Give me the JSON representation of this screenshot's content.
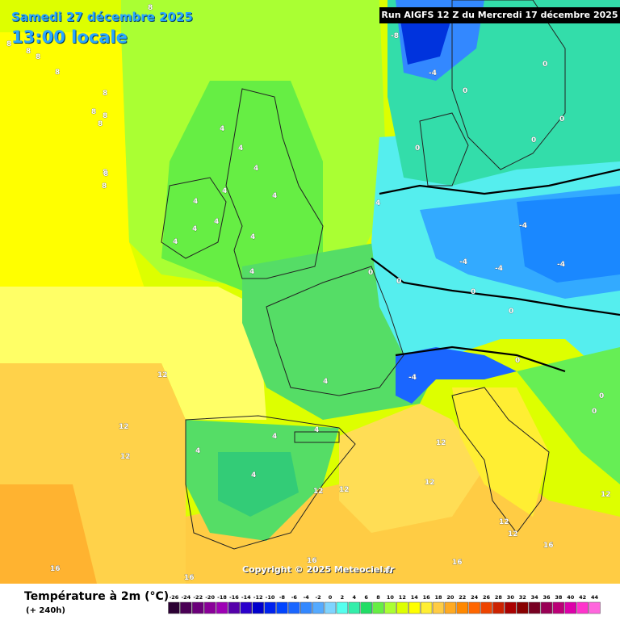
{
  "header": {
    "date": "Samedi 27 décembre 2025",
    "time": "13:00 locale",
    "run": "Run AIGFS 12 Z du Mercredi 17 décembre 2025"
  },
  "copyright": "Copyright © 2025 Meteociel.fr",
  "legend": {
    "title": "Température à 2m (°C)",
    "lead": "(+ 240h)",
    "ticks": [
      "-26",
      "-24",
      "-22",
      "-20",
      "-18",
      "-16",
      "-14",
      "-12",
      "-10",
      "-8",
      "-6",
      "-4",
      "-2",
      "0",
      "2",
      "4",
      "6",
      "8",
      "10",
      "12",
      "14",
      "16",
      "18",
      "20",
      "22",
      "24",
      "26",
      "28",
      "30",
      "32",
      "34",
      "36",
      "38",
      "40",
      "42",
      "44"
    ],
    "colors": [
      "#2b0033",
      "#4a0055",
      "#6b007a",
      "#8a0099",
      "#9e00b5",
      "#5500aa",
      "#2a00cc",
      "#0000cc",
      "#0022ee",
      "#0044ff",
      "#1a66ff",
      "#3388ff",
      "#55aaff",
      "#7fd4ff",
      "#55ffee",
      "#33eeaa",
      "#22dd66",
      "#66ee44",
      "#aaff33",
      "#ddff00",
      "#ffff00",
      "#ffee33",
      "#ffcc44",
      "#ffaa22",
      "#ff8800",
      "#ff6600",
      "#ee4400",
      "#cc2200",
      "#aa0000",
      "#880000",
      "#770022",
      "#990055",
      "#bb0077",
      "#dd00aa",
      "#ff33cc",
      "#ff66dd"
    ]
  },
  "labels": [
    "8",
    "8",
    "8",
    "8",
    "8",
    "8",
    "8",
    "8",
    "8",
    "8",
    "8",
    "8",
    "-8",
    "-4",
    "0",
    "0",
    "0",
    "0",
    "4",
    "4",
    "4",
    "4",
    "4",
    "4",
    "4",
    "4",
    "4",
    "4",
    "4",
    "4",
    "4",
    "-4",
    "-4",
    "-4",
    "-4",
    "-4",
    "0",
    "0",
    "0",
    "0",
    "0",
    "0",
    "12",
    "12",
    "12",
    "12",
    "12",
    "12",
    "12",
    "16",
    "16",
    "16",
    "16",
    "16",
    "12",
    "12",
    "12",
    "12",
    "4",
    "4",
    "4",
    "4",
    "0",
    "0"
  ]
}
